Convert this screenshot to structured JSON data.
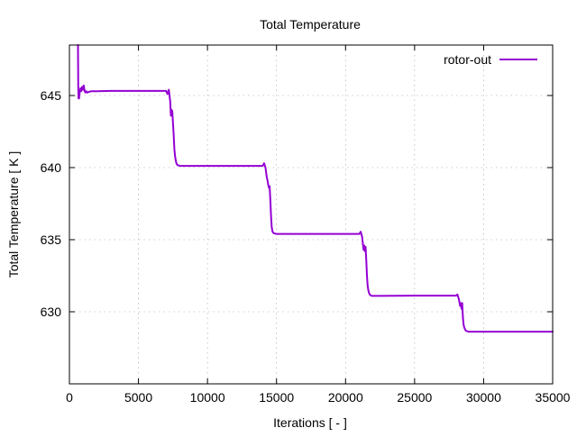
{
  "chart_data": {
    "type": "line",
    "title": "Total Temperature",
    "xlabel": "Iterations [ - ]",
    "ylabel": "Total Temperature [ K ]",
    "xlim": [
      0,
      35000
    ],
    "ylim": [
      625,
      648.5
    ],
    "xticks": [
      0,
      5000,
      10000,
      15000,
      20000,
      25000,
      30000,
      35000
    ],
    "yticks": [
      630,
      635,
      640,
      645
    ],
    "grid": true,
    "legend_position": "top-right",
    "series": [
      {
        "name": "rotor-out",
        "color": "#9400d3",
        "x": [
          620,
          640,
          660,
          680,
          700,
          740,
          800,
          860,
          920,
          980,
          1040,
          1100,
          1160,
          1220,
          1300,
          1400,
          1600,
          2000,
          3000,
          5000,
          7000,
          7100,
          7200,
          7300,
          7350,
          7400,
          7450,
          7500,
          7550,
          7600,
          7650,
          7700,
          7750,
          7800,
          7900,
          8000,
          8500,
          10000,
          13000,
          14000,
          14100,
          14200,
          14300,
          14350,
          14400,
          14450,
          14500,
          14550,
          14600,
          14650,
          14700,
          14750,
          14800,
          14900,
          15000,
          15500,
          18000,
          21000,
          21100,
          21200,
          21300,
          21350,
          21400,
          21450,
          21500,
          21550,
          21600,
          21650,
          21700,
          21750,
          21800,
          21900,
          22000,
          22500,
          25000,
          28000,
          28100,
          28200,
          28300,
          28350,
          28400,
          28450,
          28500,
          28550,
          28600,
          28650,
          28700,
          28800,
          28900,
          29000,
          29500,
          32000,
          35000
        ],
        "values": [
          648.5,
          645.5,
          644.8,
          645.0,
          644.8,
          645.2,
          645.5,
          645.3,
          645.6,
          645.4,
          645.7,
          645.3,
          645.2,
          645.3,
          645.2,
          645.25,
          645.3,
          645.3,
          645.32,
          645.32,
          645.32,
          645.1,
          645.4,
          644.6,
          643.6,
          644.0,
          643.9,
          643.1,
          642.3,
          641.3,
          640.8,
          640.5,
          640.3,
          640.2,
          640.15,
          640.12,
          640.12,
          640.12,
          640.12,
          640.12,
          640.3,
          640.0,
          639.3,
          639.1,
          638.8,
          638.6,
          638.7,
          637.8,
          636.7,
          635.9,
          635.6,
          635.5,
          635.45,
          635.42,
          635.4,
          635.4,
          635.4,
          635.4,
          635.55,
          635.2,
          634.3,
          634.6,
          634.2,
          634.5,
          633.6,
          632.5,
          631.8,
          631.5,
          631.3,
          631.2,
          631.15,
          631.1,
          631.1,
          631.1,
          631.12,
          631.12,
          631.2,
          630.9,
          630.4,
          630.6,
          630.2,
          630.6,
          629.6,
          629.1,
          628.9,
          628.8,
          628.7,
          628.65,
          628.62,
          628.62,
          628.62,
          628.62,
          628.62
        ]
      }
    ]
  }
}
